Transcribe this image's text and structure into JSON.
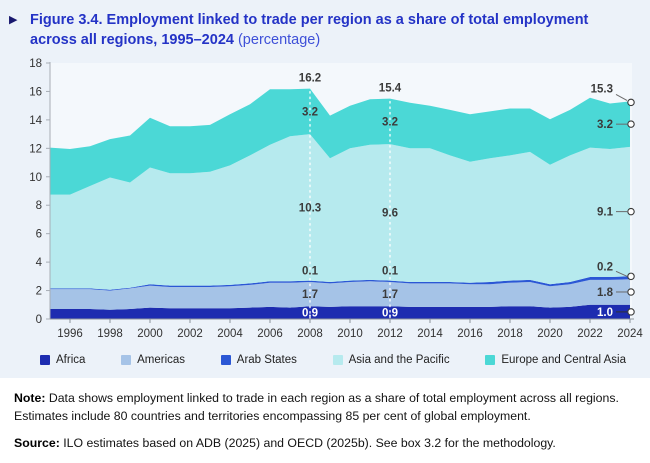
{
  "title": {
    "marker": "▶",
    "main": "Figure 3.4. Employment linked to trade per region as a share of total employment across all regions, 1995–2024",
    "suffix": " (percentage)"
  },
  "chart_data": {
    "type": "area",
    "stacked": true,
    "x": [
      1995,
      1996,
      1997,
      1998,
      1999,
      2000,
      2001,
      2002,
      2003,
      2004,
      2005,
      2006,
      2007,
      2008,
      2009,
      2010,
      2011,
      2012,
      2013,
      2014,
      2015,
      2016,
      2017,
      2018,
      2019,
      2020,
      2021,
      2022,
      2023,
      2024
    ],
    "x_tick_labels": [
      "1996",
      "1998",
      "2000",
      "2002",
      "2004",
      "2006",
      "2008",
      "2010",
      "2012",
      "2014",
      "2016",
      "2018",
      "2020",
      "2022",
      "2024"
    ],
    "ylim": [
      0,
      18
    ],
    "y_ticks": [
      0,
      2,
      4,
      6,
      8,
      10,
      12,
      14,
      16,
      18
    ],
    "plot_bg": "#f4f8fc",
    "figure_bg": "#ecf2f9",
    "series": [
      {
        "name": "Africa",
        "color": "#1d2cb0",
        "values": [
          0.7,
          0.7,
          0.7,
          0.65,
          0.7,
          0.8,
          0.75,
          0.75,
          0.75,
          0.75,
          0.8,
          0.85,
          0.8,
          0.9,
          0.85,
          0.9,
          0.9,
          0.9,
          0.85,
          0.85,
          0.85,
          0.85,
          0.85,
          0.9,
          0.9,
          0.8,
          0.85,
          1.0,
          1.0,
          1.0
        ]
      },
      {
        "name": "Americas",
        "color": "#a5c3e7",
        "values": [
          1.4,
          1.4,
          1.4,
          1.35,
          1.45,
          1.55,
          1.5,
          1.5,
          1.5,
          1.55,
          1.6,
          1.7,
          1.75,
          1.7,
          1.65,
          1.7,
          1.75,
          1.7,
          1.65,
          1.65,
          1.65,
          1.6,
          1.6,
          1.65,
          1.7,
          1.5,
          1.6,
          1.75,
          1.75,
          1.8
        ]
      },
      {
        "name": "Arab States",
        "color": "#2b57d5",
        "values": [
          0.05,
          0.05,
          0.05,
          0.05,
          0.05,
          0.1,
          0.1,
          0.1,
          0.1,
          0.1,
          0.1,
          0.1,
          0.1,
          0.1,
          0.1,
          0.1,
          0.1,
          0.1,
          0.1,
          0.1,
          0.1,
          0.1,
          0.15,
          0.15,
          0.15,
          0.15,
          0.15,
          0.2,
          0.2,
          0.2
        ]
      },
      {
        "name": "Asia and the Pacific",
        "color": "#b6eaee",
        "values": [
          6.6,
          6.6,
          7.2,
          7.9,
          7.4,
          8.2,
          7.9,
          7.9,
          8.0,
          8.4,
          9.0,
          9.6,
          10.2,
          10.3,
          8.7,
          9.3,
          9.5,
          9.6,
          9.4,
          9.4,
          8.9,
          8.5,
          8.7,
          8.8,
          9.0,
          8.4,
          8.9,
          9.1,
          9.0,
          9.1
        ]
      },
      {
        "name": "Europe and Central Asia",
        "color": "#4bd8d6",
        "values": [
          3.3,
          3.2,
          2.8,
          2.7,
          3.3,
          3.5,
          3.3,
          3.3,
          3.3,
          3.6,
          3.6,
          3.9,
          3.3,
          3.2,
          3.0,
          3.0,
          3.2,
          3.2,
          3.2,
          3.0,
          3.2,
          3.35,
          3.3,
          3.3,
          3.05,
          3.2,
          3.2,
          3.5,
          3.2,
          3.2
        ]
      }
    ],
    "annotations": [
      {
        "year": 2008,
        "dashed_line": true,
        "markers": false,
        "labels": [
          {
            "series": "total",
            "text": "16.2"
          },
          {
            "series": "Europe and Central Asia",
            "text": "3.2"
          },
          {
            "series": "Asia and the Pacific",
            "text": "10.3"
          },
          {
            "series": "Arab States",
            "text": "0.1"
          },
          {
            "series": "Americas",
            "text": "1.7"
          },
          {
            "series": "Africa",
            "text": "0.9",
            "white": true
          }
        ]
      },
      {
        "year": 2012,
        "dashed_line": true,
        "markers": false,
        "labels": [
          {
            "series": "total",
            "text": "15.4"
          },
          {
            "series": "Europe and Central Asia",
            "text": "3.2"
          },
          {
            "series": "Asia and the Pacific",
            "text": "9.6"
          },
          {
            "series": "Arab States",
            "text": "0.1"
          },
          {
            "series": "Americas",
            "text": "1.7"
          },
          {
            "series": "Africa",
            "text": "0.9",
            "white": true
          }
        ]
      },
      {
        "year": 2024,
        "dashed_line": false,
        "markers": true,
        "labels": [
          {
            "series": "total",
            "text": "15.3"
          },
          {
            "series": "Europe and Central Asia",
            "text": "3.2"
          },
          {
            "series": "Asia and the Pacific",
            "text": "9.1"
          },
          {
            "series": "Arab States",
            "text": "0.2"
          },
          {
            "series": "Americas",
            "text": "1.8"
          },
          {
            "series": "Africa",
            "text": "1.0",
            "white": true
          }
        ]
      }
    ]
  },
  "note": {
    "label": "Note:",
    "text": " Data shows employment linked to trade in each region as a share of total employment across all regions. Estimates include 80 countries and territories encompassing 85 per cent of global employment."
  },
  "source": {
    "label": "Source:",
    "text": " ILO estimates based on ADB (2025) and OECD (2025b). See box 3.2 for the methodology."
  }
}
